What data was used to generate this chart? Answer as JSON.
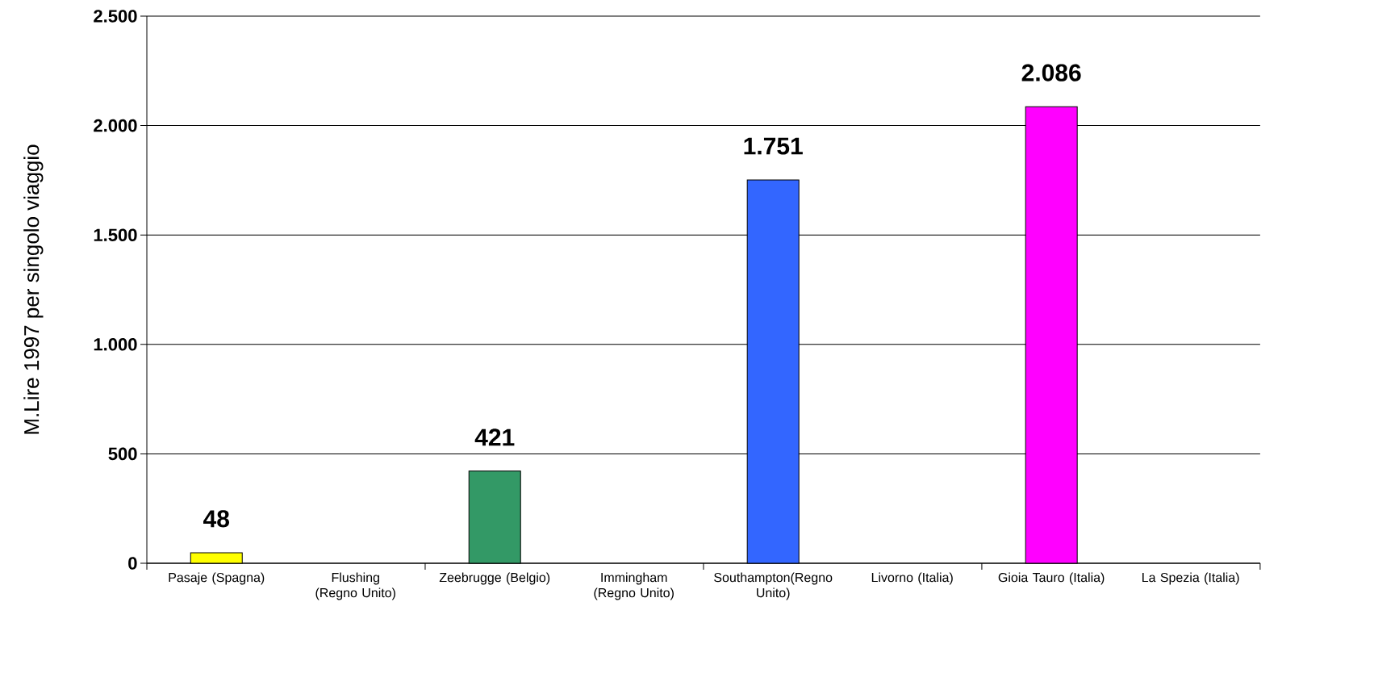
{
  "chart_data": {
    "type": "bar",
    "ylabel": "M.Lire 1997 per singolo viaggio",
    "categories": [
      "Pasaje (Spagna)",
      "Flushing (Regno Unito)",
      "Zeebrugge (Belgio)",
      "Immingham (Regno Unito)",
      "Southampton(Regno Unito)",
      "Livorno (Italia)",
      "Gioia Tauro (Italia)",
      "La Spezia (Italia)"
    ],
    "values": [
      48,
      null,
      421,
      null,
      1751,
      null,
      2086,
      null
    ],
    "colors": [
      "#ffff00",
      "#000000",
      "#339966",
      "#000000",
      "#3366ff",
      "#000000",
      "#ff00ff",
      "#000000"
    ],
    "value_labels": [
      "48",
      null,
      "421",
      null,
      "1.751",
      null,
      "2.086",
      null
    ],
    "ylim": [
      0,
      2500
    ],
    "yticks": [
      {
        "value": 0,
        "label": "0"
      },
      {
        "value": 500,
        "label": "500"
      },
      {
        "value": 1000,
        "label": "1.000"
      },
      {
        "value": 1500,
        "label": "1.500"
      },
      {
        "value": 2000,
        "label": "2.000"
      },
      {
        "value": 2500,
        "label": "2.500"
      }
    ],
    "grid": "y"
  }
}
